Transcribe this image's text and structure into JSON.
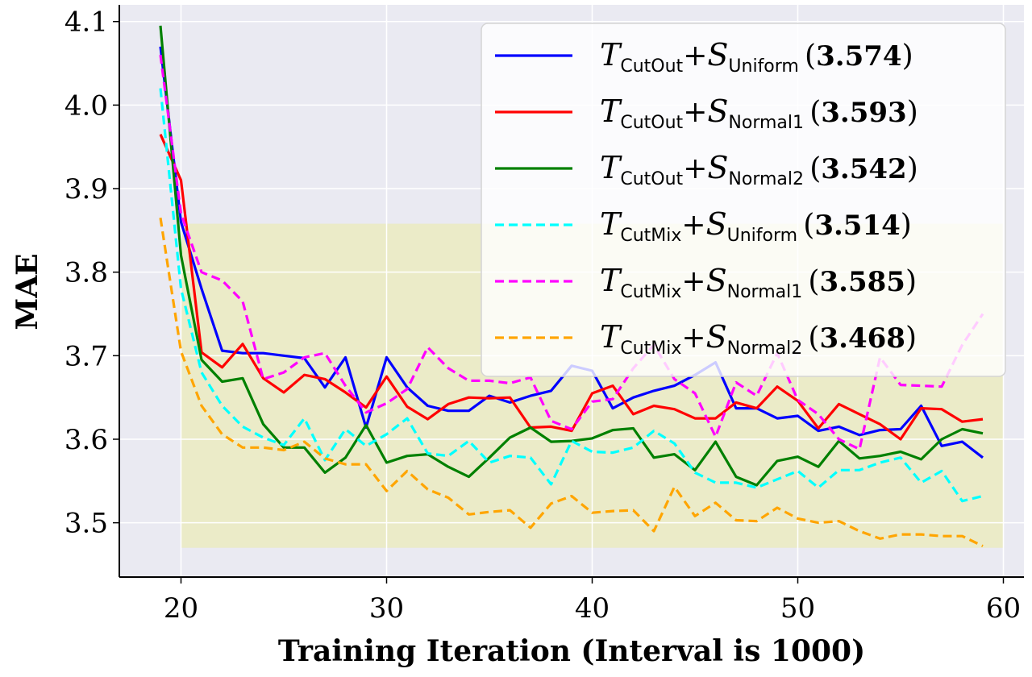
{
  "chart_data": {
    "type": "line",
    "xlabel": "Training Iteration (Interval is 1000)",
    "ylabel": "MAE",
    "xlim": [
      17,
      61
    ],
    "ylim": [
      3.435,
      4.12
    ],
    "xticks": [
      20,
      30,
      40,
      50,
      60
    ],
    "yticks": [
      3.5,
      3.6,
      3.7,
      3.8,
      3.9,
      4.0,
      4.1
    ],
    "xtick_labels": [
      "20",
      "30",
      "40",
      "50",
      "60"
    ],
    "ytick_labels": [
      "3.5",
      "3.6",
      "3.7",
      "3.8",
      "3.9",
      "4.0",
      "4.1"
    ],
    "grid": true,
    "legend_position": "top-right",
    "highlight_region": {
      "x": [
        20,
        60
      ],
      "y": [
        3.47,
        3.858
      ],
      "color": "#ebebc8"
    },
    "x": [
      19,
      20,
      21,
      22,
      23,
      24,
      25,
      26,
      27,
      28,
      29,
      30,
      31,
      32,
      33,
      34,
      35,
      36,
      37,
      38,
      39,
      40,
      41,
      42,
      43,
      44,
      45,
      46,
      47,
      48,
      49,
      50,
      51,
      52,
      53,
      54,
      55,
      56,
      57,
      58,
      59
    ],
    "series": [
      {
        "name": "T_CutOut + S_Uniform",
        "T": "T",
        "T_sub": "CutOut",
        "plus": "+",
        "S": "S",
        "S_sub": "Uniform",
        "score": "3.574",
        "color": "#0000ff",
        "dash": "solid",
        "values": [
          4.07,
          3.86,
          3.78,
          3.706,
          3.703,
          3.703,
          3.7,
          3.697,
          3.662,
          3.698,
          3.614,
          3.698,
          3.662,
          3.64,
          3.634,
          3.634,
          3.652,
          3.644,
          3.652,
          3.658,
          3.688,
          3.682,
          3.637,
          3.65,
          3.658,
          3.664,
          3.677,
          3.692,
          3.637,
          3.637,
          3.625,
          3.628,
          3.61,
          3.615,
          3.605,
          3.611,
          3.612,
          3.64,
          3.592,
          3.597,
          3.578
        ]
      },
      {
        "name": "T_CutOut + S_Normal1",
        "T": "T",
        "T_sub": "CutOut",
        "plus": "+",
        "S": "S",
        "S_sub": "Normal1",
        "score": "3.593",
        "color": "#ff0000",
        "dash": "solid",
        "values": [
          3.965,
          3.91,
          3.704,
          3.686,
          3.714,
          3.673,
          3.656,
          3.677,
          3.672,
          3.656,
          3.638,
          3.675,
          3.639,
          3.624,
          3.642,
          3.65,
          3.649,
          3.65,
          3.614,
          3.615,
          3.61,
          3.655,
          3.664,
          3.63,
          3.64,
          3.636,
          3.625,
          3.625,
          3.644,
          3.637,
          3.663,
          3.646,
          3.613,
          3.642,
          3.63,
          3.618,
          3.6,
          3.637,
          3.636,
          3.621,
          3.624
        ]
      },
      {
        "name": "T_CutOut + S_Normal2",
        "T": "T",
        "T_sub": "CutOut",
        "plus": "+",
        "S": "S",
        "S_sub": "Normal2",
        "score": "3.542",
        "color": "#008000",
        "dash": "solid",
        "values": [
          4.095,
          3.82,
          3.695,
          3.669,
          3.673,
          3.618,
          3.59,
          3.59,
          3.56,
          3.578,
          3.617,
          3.572,
          3.58,
          3.582,
          3.567,
          3.555,
          3.578,
          3.602,
          3.614,
          3.597,
          3.598,
          3.601,
          3.611,
          3.613,
          3.578,
          3.582,
          3.563,
          3.597,
          3.555,
          3.545,
          3.574,
          3.579,
          3.567,
          3.598,
          3.577,
          3.58,
          3.585,
          3.576,
          3.6,
          3.612,
          3.607
        ]
      },
      {
        "name": "T_CutMix + S_Uniform",
        "T": "T",
        "T_sub": "CutMix",
        "plus": "+",
        "S": "S",
        "S_sub": "Uniform",
        "score": "3.514",
        "color": "#00ffff",
        "dash": "dashed",
        "values": [
          4.02,
          3.78,
          3.68,
          3.64,
          3.615,
          3.602,
          3.593,
          3.625,
          3.575,
          3.612,
          3.592,
          3.606,
          3.625,
          3.583,
          3.58,
          3.598,
          3.572,
          3.58,
          3.578,
          3.546,
          3.598,
          3.585,
          3.584,
          3.59,
          3.61,
          3.595,
          3.56,
          3.548,
          3.548,
          3.542,
          3.552,
          3.562,
          3.542,
          3.563,
          3.563,
          3.572,
          3.578,
          3.548,
          3.562,
          3.526,
          3.532
        ]
      },
      {
        "name": "T_CutMix + S_Normal1",
        "T": "T",
        "T_sub": "CutMix",
        "plus": "+",
        "S": "S",
        "S_sub": "Normal1",
        "score": "3.585",
        "color": "#ff00ff",
        "dash": "dashed",
        "values": [
          4.06,
          3.87,
          3.8,
          3.79,
          3.765,
          3.672,
          3.68,
          3.698,
          3.703,
          3.664,
          3.632,
          3.643,
          3.66,
          3.71,
          3.685,
          3.67,
          3.67,
          3.667,
          3.674,
          3.622,
          3.612,
          3.645,
          3.648,
          3.685,
          3.713,
          3.672,
          3.655,
          3.603,
          3.668,
          3.652,
          3.703,
          3.647,
          3.63,
          3.6,
          3.588,
          3.698,
          3.665,
          3.664,
          3.663,
          3.713,
          3.75
        ]
      },
      {
        "name": "T_CutMix + S_Normal2",
        "T": "T",
        "T_sub": "CutMix",
        "plus": "+",
        "S": "S",
        "S_sub": "Normal2",
        "score": "3.468",
        "color": "#ffa500",
        "dash": "dashed",
        "values": [
          3.865,
          3.705,
          3.64,
          3.606,
          3.59,
          3.59,
          3.587,
          3.597,
          3.577,
          3.57,
          3.57,
          3.538,
          3.562,
          3.54,
          3.53,
          3.51,
          3.513,
          3.515,
          3.494,
          3.523,
          3.532,
          3.512,
          3.514,
          3.515,
          3.49,
          3.543,
          3.508,
          3.524,
          3.503,
          3.502,
          3.518,
          3.505,
          3.5,
          3.502,
          3.49,
          3.481,
          3.486,
          3.486,
          3.484,
          3.484,
          3.472
        ]
      }
    ]
  }
}
